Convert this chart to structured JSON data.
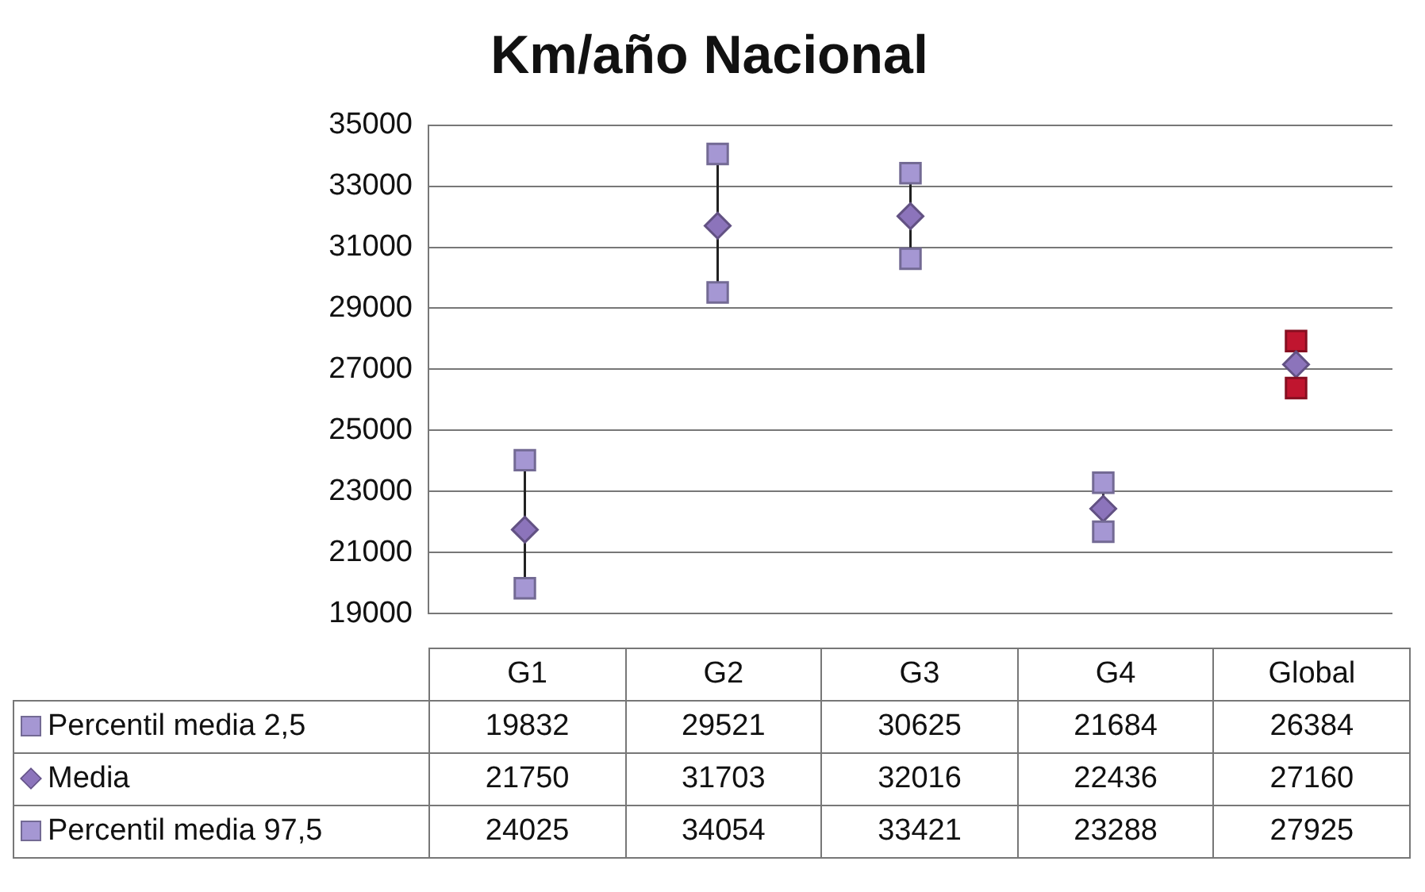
{
  "chart_data": {
    "type": "scatter",
    "title": "Km/año Nacional",
    "categories": [
      "G1",
      "G2",
      "G3",
      "G4",
      "Global"
    ],
    "series": [
      {
        "name": "Percentil media 2,5",
        "marker": "square",
        "color": "#a597d3",
        "colors": [
          "#a597d3",
          "#a597d3",
          "#a597d3",
          "#a597d3",
          "#c0152f"
        ],
        "values": [
          19832,
          29521,
          30625,
          21684,
          26384
        ]
      },
      {
        "name": "Media",
        "marker": "diamond",
        "color": "#8c74bb",
        "values": [
          21750,
          31703,
          32016,
          22436,
          27160
        ]
      },
      {
        "name": "Percentil media 97,5",
        "marker": "square",
        "color": "#a597d3",
        "colors": [
          "#a597d3",
          "#a597d3",
          "#a597d3",
          "#a597d3",
          "#c0152f"
        ],
        "values": [
          24025,
          34054,
          33421,
          23288,
          27925
        ]
      }
    ],
    "ylim": [
      19000,
      35000
    ],
    "yticks": [
      19000,
      21000,
      23000,
      25000,
      27000,
      29000,
      31000,
      33000,
      35000
    ],
    "grid": "y",
    "legend": "bottom",
    "data_labels": true
  }
}
